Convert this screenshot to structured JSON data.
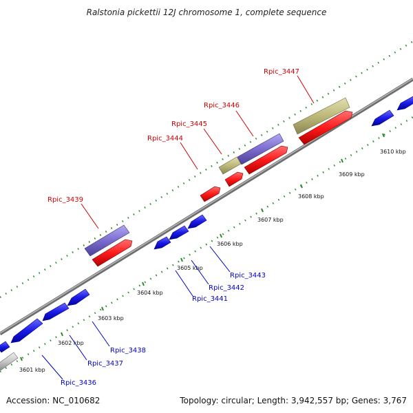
{
  "title": "Ralstonia pickettii 12J chromosome 1, complete sequence",
  "footer": {
    "accession": "Accession: NC_010682",
    "topology": "Topology: circular; Length: 3,942,557 bp; Genes: 3,767"
  },
  "colors": {
    "backbone": "#8a8a8a",
    "plus_label": "#d00000",
    "minus_label": "#0000cc",
    "forward_cds": "#ff1010",
    "reverse_cds": "#1818e6",
    "other_gene_purple": "#7b6ccf",
    "other_gene_khaki": "#bdb87a",
    "pseudo_gray": "#c8c8c8",
    "tick_green": "#2c8a2c"
  },
  "scale_ticks": [
    "3601 kbp",
    "3602 kbp",
    "3603 kbp",
    "3604 kbp",
    "3605 kbp",
    "3606 kbp",
    "3607 kbp",
    "3608 kbp",
    "3609 kbp",
    "3610 kbp"
  ],
  "genes_plus_labels": [
    "Rpic_3439",
    "Rpic_3444",
    "Rpic_3445",
    "Rpic_3446",
    "Rpic_3447"
  ],
  "genes_minus_labels": [
    "Rpic_3436",
    "Rpic_3437",
    "Rpic_3438",
    "Rpic_3441",
    "Rpic_3442",
    "Rpic_3443"
  ]
}
